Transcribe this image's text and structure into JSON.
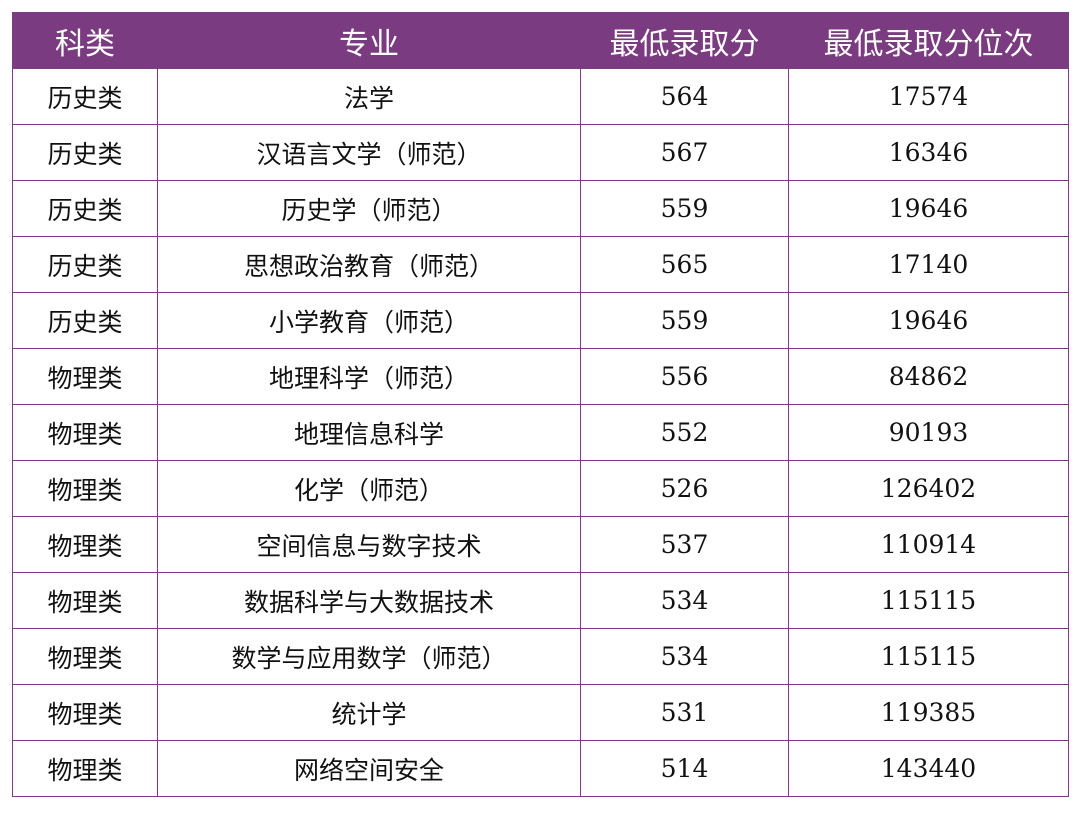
{
  "table": {
    "header": [
      "科类",
      "专业",
      "最低录取分",
      "最低录取分位次"
    ],
    "rows": [
      [
        "历史类",
        "法学",
        564,
        17574
      ],
      [
        "历史类",
        "汉语言文学（师范）",
        567,
        16346
      ],
      [
        "历史类",
        "历史学（师范）",
        559,
        19646
      ],
      [
        "历史类",
        "思想政治教育（师范）",
        565,
        17140
      ],
      [
        "历史类",
        "小学教育（师范）",
        559,
        19646
      ],
      [
        "物理类",
        "地理科学（师范）",
        556,
        84862
      ],
      [
        "物理类",
        "地理信息科学",
        552,
        90193
      ],
      [
        "物理类",
        "化学（师范）",
        526,
        126402
      ],
      [
        "物理类",
        "空间信息与数字技术",
        537,
        110914
      ],
      [
        "物理类",
        "数据科学与大数据技术",
        534,
        115115
      ],
      [
        "物理类",
        "数学与应用数学（师范）",
        534,
        115115
      ],
      [
        "物理类",
        "统计学",
        531,
        119385
      ],
      [
        "物理类",
        "网络空间安全",
        514,
        143440
      ]
    ]
  }
}
